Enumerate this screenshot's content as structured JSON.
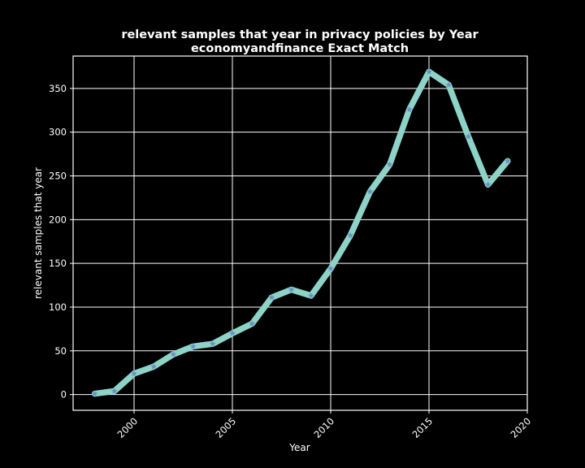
{
  "chart_data": {
    "type": "line",
    "title": "relevant samples that year in privacy policies by Year",
    "subtitle": "economyandfinance Exact Match",
    "xlabel": "Year",
    "ylabel": "relevant samples that year",
    "xlim": [
      1996.9,
      2020
    ],
    "ylim": [
      -18,
      387
    ],
    "xticks": [
      "2000",
      "2005",
      "2010",
      "2015",
      "2020"
    ],
    "yticks": [
      "0",
      "50",
      "100",
      "150",
      "200",
      "250",
      "300",
      "350"
    ],
    "grid": true,
    "series": [
      {
        "x": [
          1998,
          1999,
          2000,
          2001,
          2002,
          2003,
          2004,
          2005,
          2006,
          2007,
          2008,
          2009,
          2010,
          2011,
          2012,
          2013,
          2014,
          2015,
          2016,
          2017,
          2018,
          2019
        ],
        "values": [
          1,
          4,
          24,
          32,
          46,
          55,
          58,
          70,
          81,
          111,
          120,
          113,
          144,
          182,
          232,
          263,
          326,
          369,
          354,
          295,
          240,
          267
        ],
        "line_color": "#8dd3c7",
        "marker_color": "#6a8fc4",
        "marker": "star"
      }
    ]
  }
}
